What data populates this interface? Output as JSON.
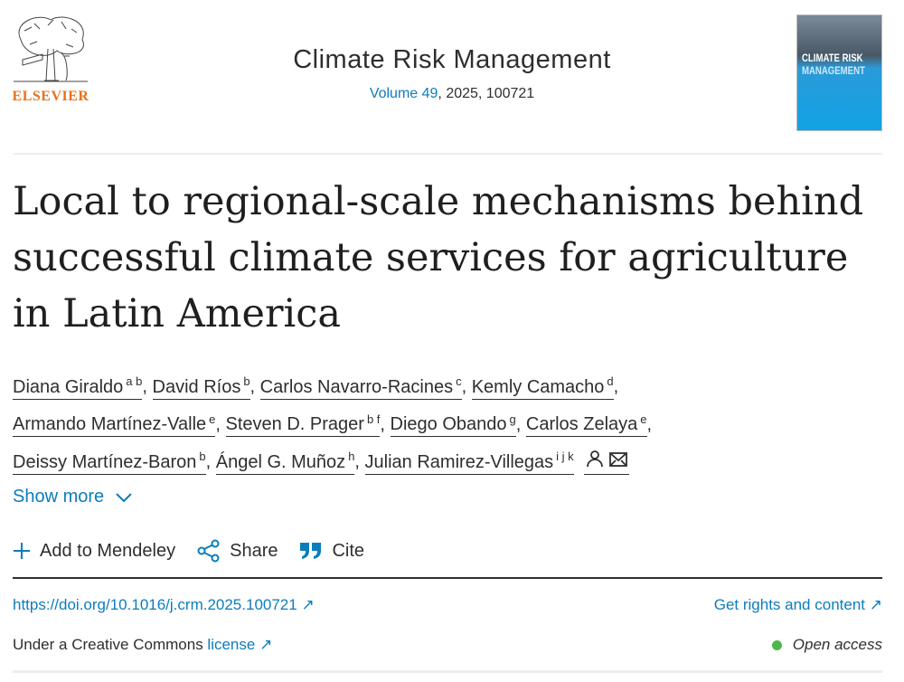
{
  "publisher": {
    "name": "ELSEVIER"
  },
  "journal": {
    "title": "Climate Risk Management",
    "volume_link": "Volume 49",
    "meta": ", 2025, 100721",
    "cover_title_1": "CLIMATE RISK",
    "cover_title_2": "MANAGEMENT"
  },
  "article": {
    "title": "Local to regional-scale mechanisms behind successful climate services for agriculture in Latin America"
  },
  "authors": [
    {
      "name": "Diana Giraldo",
      "sup": "a b"
    },
    {
      "name": "David Ríos",
      "sup": "b"
    },
    {
      "name": "Carlos Navarro-Racines",
      "sup": "c"
    },
    {
      "name": "Kemly Camacho",
      "sup": "d"
    },
    {
      "name": "Armando Martínez-Valle",
      "sup": "e"
    },
    {
      "name": "Steven D. Prager",
      "sup": "b f"
    },
    {
      "name": "Diego Obando",
      "sup": "g"
    },
    {
      "name": "Carlos Zelaya",
      "sup": "e"
    },
    {
      "name": "Deissy Martínez-Baron",
      "sup": "b"
    },
    {
      "name": "Ángel G. Muñoz",
      "sup": "h"
    },
    {
      "name": "Julian Ramirez-Villegas",
      "sup": "i j k"
    }
  ],
  "show_more": "Show more",
  "actions": {
    "mendeley": "Add to Mendeley",
    "share": "Share",
    "cite": "Cite"
  },
  "links": {
    "doi": "https://doi.org/10.1016/j.crm.2025.100721",
    "rights": "Get rights and content",
    "license_prefix": "Under a Creative Commons ",
    "license": "license",
    "open_access": "Open access"
  },
  "colors": {
    "link": "#0c7dbb",
    "elsevier": "#e9711c",
    "open_access_dot": "#4cb848"
  }
}
